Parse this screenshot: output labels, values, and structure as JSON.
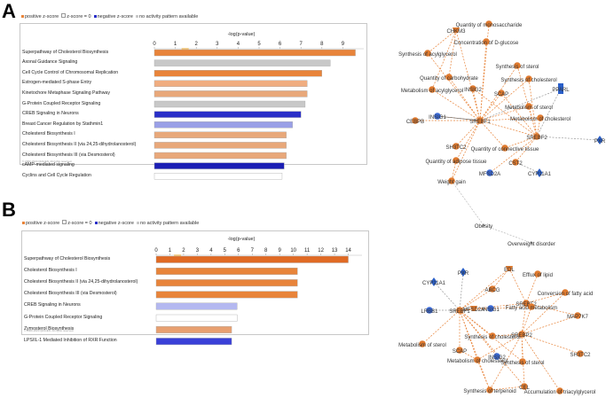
{
  "panels": {
    "a": {
      "label": "A",
      "legend": [
        "positive z-score",
        "z-score = 0",
        "negative z-score",
        "no activity pattern available"
      ],
      "copyright": "© 2000-2020 QIAGEN. All rights reserved.",
      "network_nodes": [
        "Quantity of monosaccharide",
        "CHKM3",
        "Concentration of D-glucose",
        "Synthesis of acylglycerol",
        "Quantity of carbohydrate",
        "Synthesis of sterol",
        "Synthesis of cholesterol",
        "PPARL",
        "Metabolism of acylglycerol",
        "INSIG2",
        "SCAP",
        "Metabolism of sterol",
        "INSIG1",
        "Metabolism of cholesterol",
        "SREBF1",
        "CEBPB",
        "SREBF2",
        "PXR",
        "SH3TC2",
        "Quantity of connective tissue",
        "CST2",
        "Quantity of adipose tissue",
        "MFSD2A",
        "CYP11A1",
        "Weight gain",
        "Obesity",
        "Overweight disorder"
      ]
    },
    "b": {
      "label": "B",
      "legend": [
        "positive z-score",
        "z-score = 0",
        "negative z-score",
        "no activity pattern available"
      ],
      "copyright": "© 2000-2020 QIAGEN. All rights reserved.",
      "network_nodes": [
        "EDL",
        "Efflux of lipid",
        "ABCG",
        "SREBF2",
        "MAP7K7",
        "CYP11A1",
        "PXR",
        "MFSD2A",
        "INSIG1",
        "Fatty acid metabolism",
        "LRBB1",
        "SREBF1",
        "Conversion of fatty acid",
        "Synthesis of cholesterol",
        "SREBP2",
        "Metabolism of sterol",
        "SCAP",
        "Synthesis of sterol",
        "SH3TC2",
        "Metabolism of cholesterol",
        "INSIG2",
        "Synthesis of terpenoid",
        "CEL",
        "Accumulation of triacylglycerol"
      ]
    }
  },
  "chart_data": [
    {
      "type": "bar",
      "title": "-log(p-value)",
      "xlim": [
        0,
        10
      ],
      "ticks": [
        "0",
        "1",
        "2",
        "3",
        "4",
        "5",
        "6",
        "7",
        "8",
        "9"
      ],
      "categories": [
        "Superpathway of Cholesterol Biosynthesis",
        "Axonal Guidance Signaling",
        "Cell Cycle Control of Chromosomal Replication",
        "Estrogen-mediated S-phase Entry",
        "Kinetochore Metaphase Signaling Pathway",
        "G-Protein Coupled Receptor Signaling",
        "CREB Signaling in Neurons",
        "Breast Cancer Regulation by Stathmin1",
        "Cholesterol Biosynthesis I",
        "Cholesterol Biosynthesis II (via 24,25-dihydrolanosterol)",
        "Cholesterol Biosynthesis III (via Desmosterol)",
        "cAMP-mediated signaling",
        "Cyclins and Cell Cycle Regulation"
      ],
      "values": [
        9.6,
        8.4,
        8.0,
        7.3,
        7.3,
        7.2,
        7.0,
        6.6,
        6.3,
        6.3,
        6.3,
        6.2,
        6.1
      ],
      "colors": [
        "#e8843a",
        "#c8c8c8",
        "#e8843a",
        "#f0ad80",
        "#e8a87a",
        "#c8c8c8",
        "#2a2fc8",
        "#9aa0e6",
        "#e8a87a",
        "#e8a87a",
        "#e8a87a",
        "#1c1fb4",
        "#ffffff"
      ]
    },
    {
      "type": "bar",
      "title": "-log(p-value)",
      "xlim": [
        0,
        15
      ],
      "ticks": [
        "0",
        "1",
        "2",
        "3",
        "4",
        "5",
        "6",
        "7",
        "8",
        "9",
        "10",
        "11",
        "12",
        "13",
        "14"
      ],
      "categories": [
        "Superpathway of Cholesterol Biosynthesis",
        "Cholesterol Biosynthesis I",
        "Cholesterol Biosynthesis II (via 24,25-dihydrolanosterol)",
        "Cholesterol Biosynthesis III (via Desmosterol)",
        "CREB Signaling in Neurons",
        "G-Protein Coupled Receptor Signaling",
        "Zymosterol Biosynthesis",
        "LPS/IL-1 Mediated Inhibition of RXR Function"
      ],
      "values": [
        14.0,
        10.3,
        10.3,
        10.3,
        5.9,
        5.9,
        5.5,
        5.5
      ],
      "colors": [
        "#e06a24",
        "#e8843a",
        "#e8843a",
        "#e8843a",
        "#b4b8f0",
        "#ffffff",
        "#e8a070",
        "#3a40d8"
      ]
    }
  ]
}
